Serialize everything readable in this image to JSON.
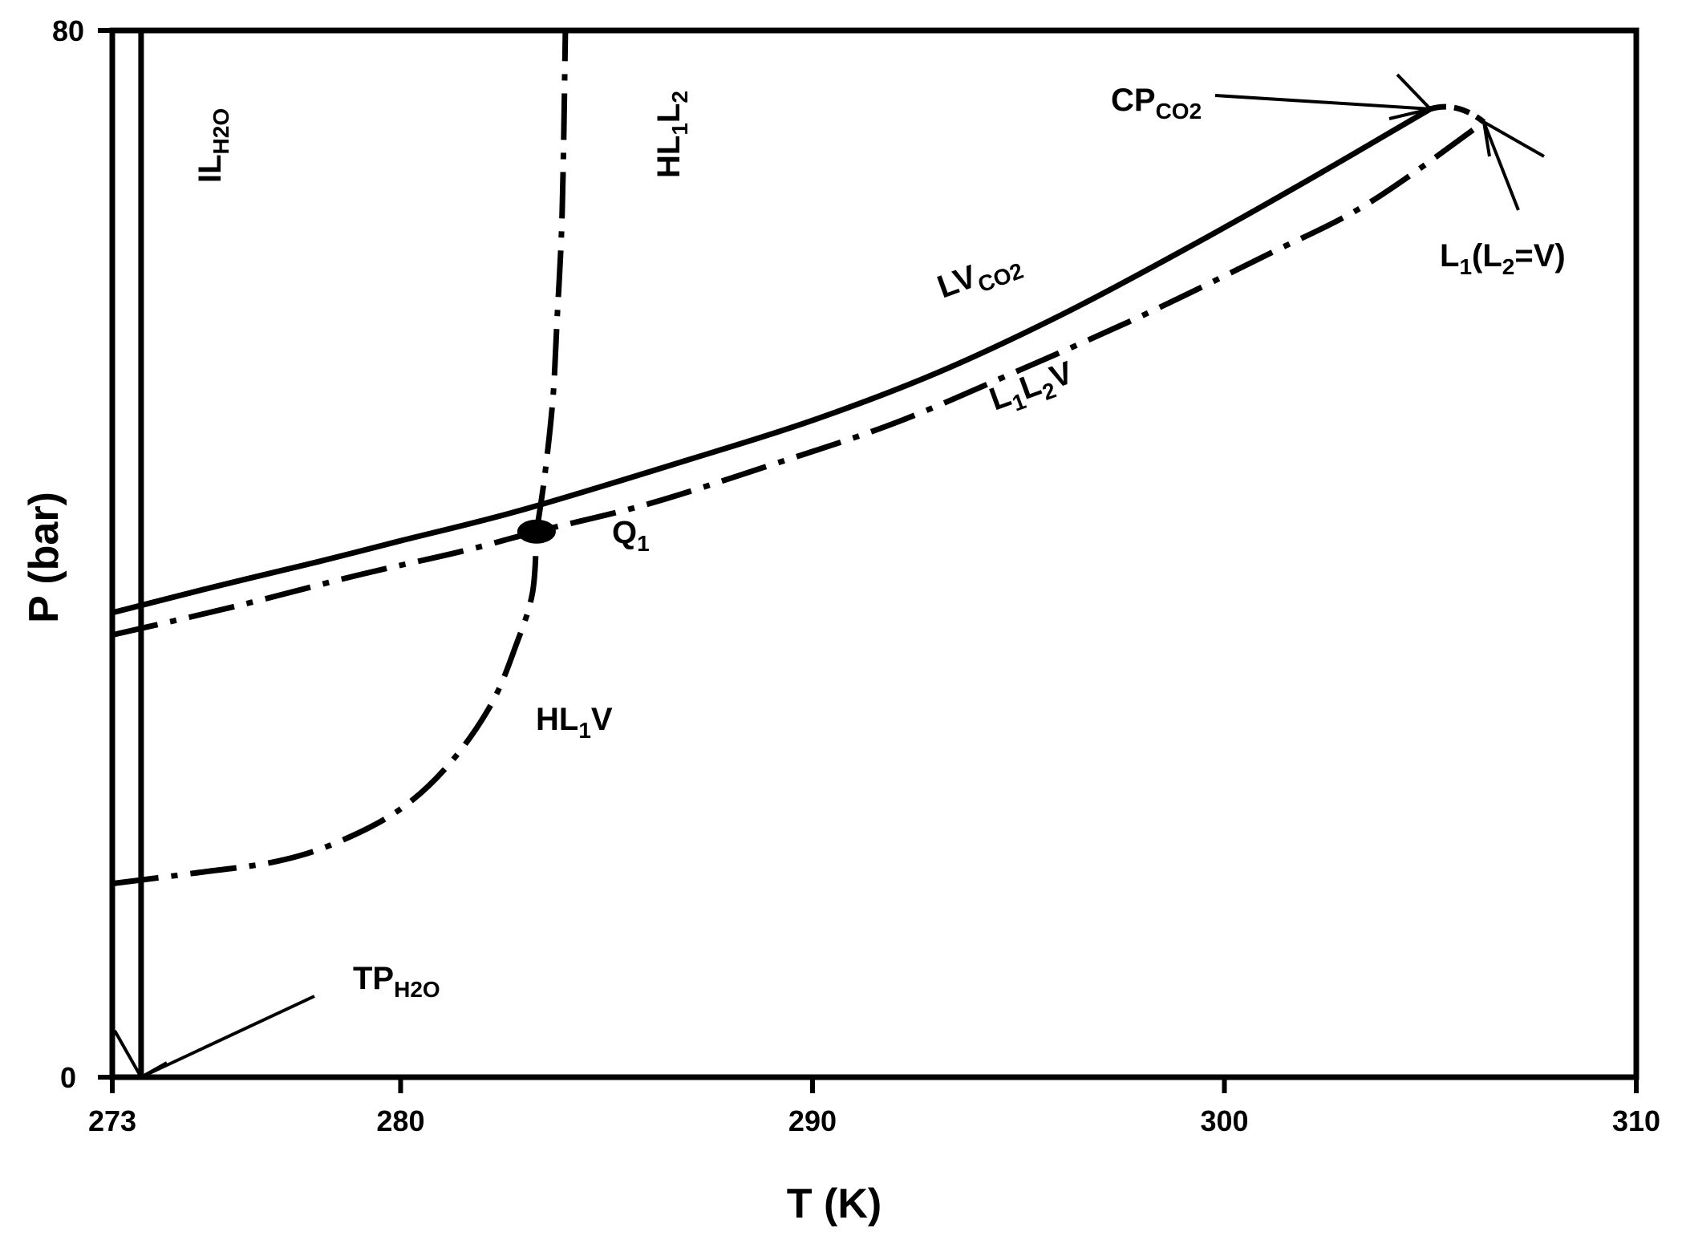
{
  "chart_data": {
    "type": "line",
    "xlabel": "T (K)",
    "ylabel": "P (bar)",
    "xlim": [
      273,
      310
    ],
    "ylim": [
      0,
      80
    ],
    "x_ticks": [
      "273",
      "280",
      "290",
      "300",
      "310"
    ],
    "y_ticks": [
      "0",
      "80"
    ],
    "grid": false,
    "series": [
      {
        "name": "IL_H2O",
        "label_main": "IL",
        "label_sub": "H2O",
        "style": "solid",
        "points": [
          [
            273.0,
            0
          ],
          [
            273.0,
            80
          ]
        ]
      },
      {
        "name": "IL_H2O boundary",
        "style": "solid",
        "points": [
          [
            273.7,
            0
          ],
          [
            273.7,
            80
          ]
        ]
      },
      {
        "name": "LV_CO2",
        "label_main": "LV",
        "label_sub": "CO2",
        "style": "solid",
        "points": [
          [
            273.0,
            35.5
          ],
          [
            275.5,
            37.5
          ],
          [
            278.0,
            39.4
          ],
          [
            280.0,
            41.0
          ],
          [
            283.0,
            43.4
          ],
          [
            287.0,
            47.2
          ],
          [
            290.0,
            50.2
          ],
          [
            293.0,
            53.8
          ],
          [
            296.0,
            58.2
          ],
          [
            299.0,
            63.2
          ],
          [
            302.0,
            68.5
          ],
          [
            305.0,
            74.0
          ]
        ]
      },
      {
        "name": "L1L2V",
        "label_main": "L",
        "style": "dashdot",
        "points": [
          [
            273.0,
            33.8
          ],
          [
            276.0,
            36.0
          ],
          [
            279.0,
            38.4
          ],
          [
            281.5,
            40.2
          ],
          [
            283.3,
            41.7
          ],
          [
            286.0,
            43.8
          ],
          [
            289.0,
            46.8
          ],
          [
            292.0,
            50.0
          ],
          [
            295.0,
            54.0
          ],
          [
            298.0,
            58.2
          ],
          [
            301.0,
            62.8
          ],
          [
            303.5,
            66.8
          ],
          [
            306.3,
            73.0
          ]
        ]
      },
      {
        "name": "HL1V",
        "label_main": "HL",
        "label_sub": "1",
        "label_tail": "V",
        "style": "dashdot",
        "points": [
          [
            273.0,
            14.8
          ],
          [
            275.0,
            15.6
          ],
          [
            277.0,
            16.5
          ],
          [
            278.5,
            18.0
          ],
          [
            280.0,
            20.5
          ],
          [
            281.2,
            24.0
          ],
          [
            282.2,
            28.5
          ],
          [
            282.8,
            33.0
          ],
          [
            283.2,
            37.0
          ],
          [
            283.3,
            41.7
          ]
        ]
      },
      {
        "name": "HL1L2",
        "label_main": "HL",
        "style": "dashdot",
        "points": [
          [
            283.3,
            41.7
          ],
          [
            283.5,
            46.0
          ],
          [
            283.7,
            52.0
          ],
          [
            283.8,
            58.0
          ],
          [
            283.9,
            64.0
          ],
          [
            283.95,
            70.0
          ],
          [
            284.0,
            80.0
          ]
        ]
      }
    ],
    "points": [
      {
        "name": "Q1",
        "label_main": "Q",
        "label_sub": "1",
        "x": 283.3,
        "y": 41.7
      },
      {
        "name": "CP_CO2",
        "label_main": "CP",
        "label_sub": "CO2",
        "x": 305.0,
        "y": 74.0
      },
      {
        "name": "L1(L2=V)",
        "label_main": "L",
        "label_sub": "1",
        "label_tail": "(L",
        "label_sub2": "2",
        "label_tail2": "=V)",
        "x": 306.3,
        "y": 73.0
      },
      {
        "name": "TP_H2O",
        "label_main": "TP",
        "label_sub": "H2O",
        "x": 273.7,
        "y": 0.0
      }
    ],
    "line_labels": {
      "L1L2V": {
        "a": "L",
        "a_sub": "1",
        "b": "L",
        "b_sub": "2",
        "c": "V"
      },
      "HL1L2": {
        "a": "HL",
        "a_sub": "1",
        "b": "L",
        "b_sub": "2"
      }
    }
  }
}
